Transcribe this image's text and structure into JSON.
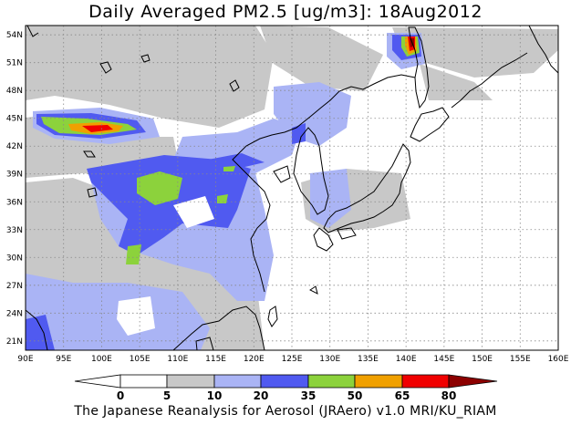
{
  "title": "Daily Averaged PM2.5 [ug/m3]: 18Aug2012",
  "footer": "The Japanese Reanalysis for Aerosol (JRAero) v1.0 MRI/KU_RIAM",
  "map": {
    "lon_min": 90,
    "lon_max": 160,
    "lat_min": 20,
    "lat_max": 55,
    "lon_ticks": [
      "90E",
      "95E",
      "100E",
      "105E",
      "110E",
      "115E",
      "120E",
      "125E",
      "130E",
      "135E",
      "140E",
      "145E",
      "150E",
      "155E",
      "160E"
    ],
    "lat_ticks": [
      "21N",
      "24N",
      "27N",
      "30N",
      "33N",
      "36N",
      "39N",
      "42N",
      "45N",
      "48N",
      "51N",
      "54N"
    ]
  },
  "colorbar": {
    "levels": [
      "0",
      "5",
      "10",
      "20",
      "35",
      "50",
      "65",
      "80"
    ],
    "colors": {
      "below_0": "#ffffff",
      "0_5": "#ffffff",
      "5_10": "#c8c8c8",
      "10_20": "#aab4f5",
      "20_35": "#505af0",
      "35_50": "#8cd23c",
      "50_65": "#f0a000",
      "65_80": "#f00000",
      "above_80": "#8c0000"
    }
  }
}
